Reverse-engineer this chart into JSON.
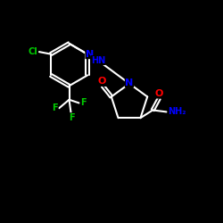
{
  "bg_color": "#000000",
  "bond_color": "#ffffff",
  "atom_colors": {
    "N": "#0000ff",
    "O": "#ff0000",
    "Cl": "#00cc00",
    "F": "#00cc00",
    "C": "#ffffff",
    "H": "#ffffff"
  }
}
